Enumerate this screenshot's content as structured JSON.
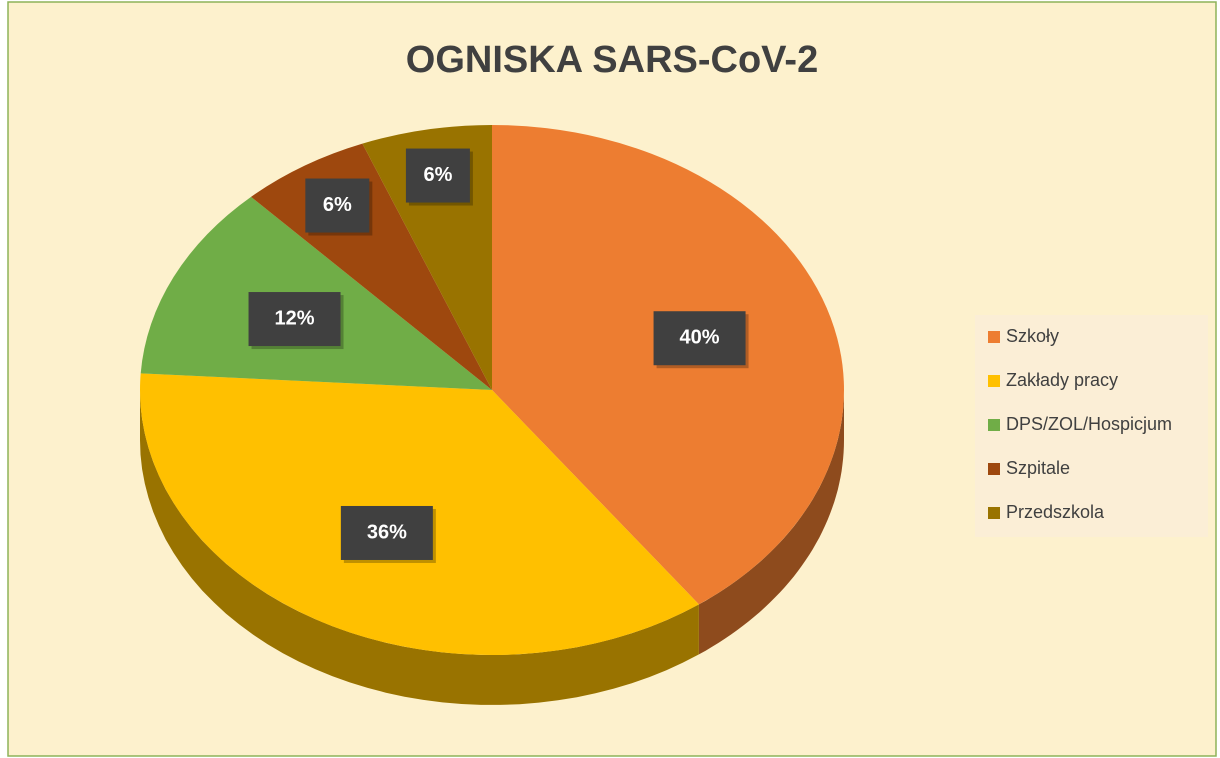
{
  "chart_data": {
    "type": "pie",
    "title": "OGNISKA SARS-CoV-2",
    "categories": [
      "Szkoły",
      "Zakłady pracy",
      "DPS/ZOL/Hospicjum",
      "Szpitale",
      "Przedszkola"
    ],
    "values": [
      40,
      36,
      12,
      6,
      6
    ],
    "value_labels": [
      "40%",
      "36%",
      "12%",
      "6%",
      "6%"
    ],
    "colors": [
      "#ed7d31",
      "#ffc000",
      "#70ad47",
      "#9e480e",
      "#997300"
    ],
    "legend": "right"
  }
}
